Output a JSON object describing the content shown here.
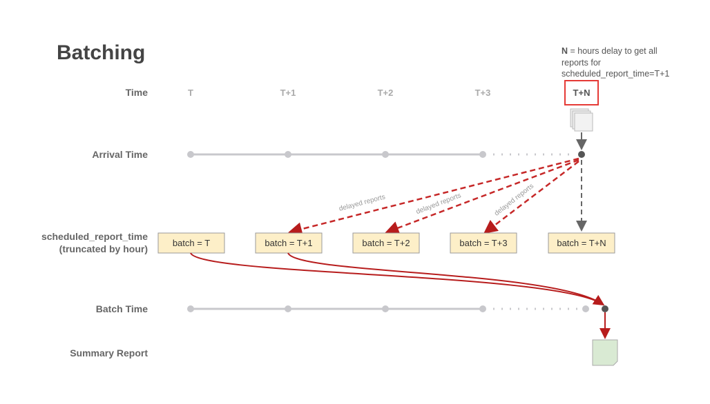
{
  "title": "Batching",
  "note": {
    "bold": "N",
    "line1": " = hours delay to get all",
    "line2": "reports for",
    "line3": "scheduled_report_time=T+1"
  },
  "rows": {
    "time": "Time",
    "arrival": "Arrival Time",
    "scheduled1": "scheduled_report_time",
    "scheduled2": "(truncated by hour)",
    "batch_time": "Batch Time",
    "summary": "Summary Report"
  },
  "columns": [
    "T",
    "T+1",
    "T+2",
    "T+3",
    "T+N"
  ],
  "batches": [
    "batch = T",
    "batch = T+1",
    "batch = T+2",
    "batch = T+3",
    "batch = T+N"
  ],
  "delayed_label": "delayed reports",
  "colors": {
    "highlight": "#e53935",
    "arrow_red": "#b71c1c",
    "batch_fill": "#fdefc8",
    "summary_fill": "#d9ead3",
    "timeline": "#c8c8cc"
  }
}
